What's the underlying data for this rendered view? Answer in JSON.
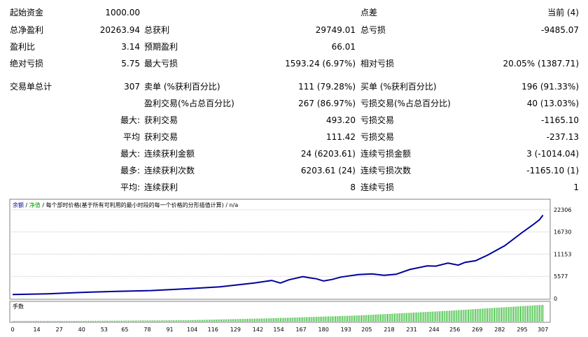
{
  "stats": {
    "row1": {
      "l1": "起始资金",
      "v1": "1000.00",
      "l3": "点差",
      "v3": "当前 (4)"
    },
    "row2": {
      "l1": "总净盈利",
      "v1": "20263.94",
      "l2": "总获利",
      "v2": "29749.01",
      "l3": "总亏损",
      "v3": "-9485.07"
    },
    "row3": {
      "l1": "盈利比",
      "v1": "3.14",
      "l2": "预期盈利",
      "v2": "66.01"
    },
    "row4": {
      "l1": "绝对亏损",
      "v1": "5.75",
      "l2": "最大亏损",
      "v2": "1593.24 (6.97%)",
      "l3": "相对亏损",
      "v3": "20.05% (1387.71)"
    },
    "row5": {
      "l1": "交易单总计",
      "v1": "307",
      "l2": "卖单 (%获利百分比)",
      "v2": "111 (79.28%)",
      "l3": "买单 (%获利百分比)",
      "v3": "196 (91.33%)"
    },
    "row6": {
      "l2": "盈利交易(%占总百分比)",
      "v2": "267 (86.97%)",
      "l3": "亏损交易(%占总百分比)",
      "v3": "40 (13.03%)"
    },
    "row7": {
      "p": "最大:",
      "l2": "获利交易",
      "v2": "493.20",
      "l3": "亏损交易",
      "v3": "-1165.10"
    },
    "row8": {
      "p": "平均",
      "l2": "获利交易",
      "v2": "111.42",
      "l3": "亏损交易",
      "v3": "-237.13"
    },
    "row9": {
      "p": "最大:",
      "l2": "连续获利金额",
      "v2": "24 (6203.61)",
      "l3": "连续亏损金额",
      "v3": "3 (-1014.04)"
    },
    "row10": {
      "p": "最多:",
      "l2": "连续获利次数",
      "v2": "6203.61 (24)",
      "l3": "连续亏损次数",
      "v3": "-1165.10 (1)"
    },
    "row11": {
      "p": "平均:",
      "l2": "连续获利",
      "v2": "8",
      "l3": "连续亏损",
      "v3": "1"
    }
  },
  "chart_data": {
    "type": "line",
    "legend": {
      "series1": "余额",
      "sep1": " / ",
      "series2": "净值",
      "sep2": " / ",
      "model": "每个部时价格(基于所有可利用的最小时段的每一个价格的分形插值计算)",
      "sep3": " / ",
      "extra": "n/a"
    },
    "sub_label": "手数",
    "y_ticks": [
      0,
      5577,
      11153,
      16730,
      22306
    ],
    "x_ticks": [
      0,
      14,
      27,
      40,
      53,
      65,
      78,
      91,
      104,
      116,
      129,
      142,
      154,
      167,
      180,
      193,
      205,
      218,
      231,
      244,
      256,
      269,
      282,
      295,
      307
    ],
    "ylim": [
      0,
      22306
    ],
    "xlim": [
      0,
      310
    ],
    "colors": {
      "balance": "#00009c",
      "equity": "#00a000",
      "lots": "#00aa00",
      "grid": "#c8c8c8"
    },
    "series": [
      {
        "name": "余额",
        "x": [
          0,
          20,
          40,
          60,
          80,
          100,
          120,
          140,
          150,
          155,
          160,
          168,
          172,
          176,
          180,
          185,
          190,
          200,
          208,
          215,
          222,
          230,
          240,
          245,
          252,
          258,
          262,
          268,
          275,
          285,
          295,
          302,
          305,
          307
        ],
        "y": [
          1000,
          1200,
          1550,
          1800,
          2000,
          2450,
          2950,
          3900,
          4550,
          3900,
          4700,
          5500,
          5200,
          4950,
          4400,
          4800,
          5400,
          6000,
          6200,
          5850,
          6100,
          7300,
          8200,
          8150,
          8900,
          8400,
          9100,
          9500,
          10900,
          13300,
          16600,
          18800,
          19800,
          20950
        ]
      }
    ],
    "lots": {
      "x": [
        0,
        100,
        150,
        200,
        250,
        307
      ],
      "y": [
        0.01,
        0.05,
        0.12,
        0.22,
        0.38,
        0.6
      ]
    }
  }
}
